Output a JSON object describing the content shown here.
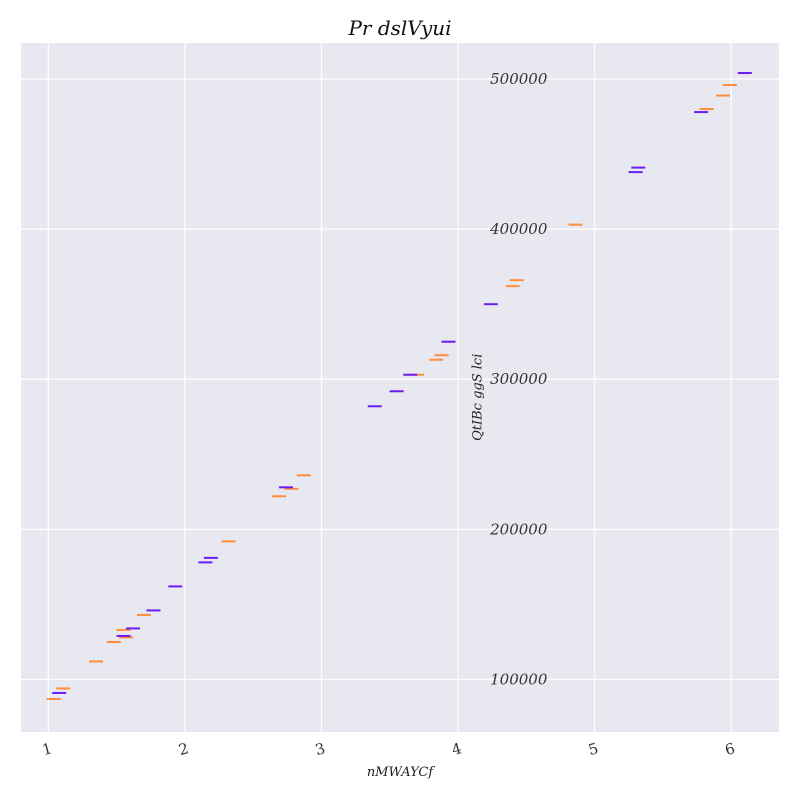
{
  "chart_data": {
    "type": "scatter",
    "marker": "hline",
    "title": "Pr dslVyui",
    "xlabel": "nMWAYCf",
    "ylabel": "QtIBc ggS lci",
    "xlim": [
      0.8,
      6.35
    ],
    "ylim": [
      65000,
      524000
    ],
    "xticks": [
      1,
      2,
      3,
      4,
      5,
      6
    ],
    "xtick_labels": [
      "1",
      "2",
      "3",
      "4",
      "5",
      "6"
    ],
    "yticks": [
      100000,
      200000,
      300000,
      400000,
      500000
    ],
    "ytick_labels": [
      "100000",
      "200000",
      "300000",
      "400000",
      "500000"
    ],
    "grid": true,
    "background": "#e8e8f0",
    "series": [
      {
        "color": "#ff8c3a",
        "x": [
          1.04,
          1.11,
          1.35,
          1.48,
          1.57,
          1.55,
          1.7,
          2.32,
          2.69,
          2.78,
          2.87,
          3.7,
          3.84,
          3.88,
          4.4,
          4.43,
          4.86,
          5.82,
          5.94,
          5.99
        ],
        "y": [
          87000,
          94000,
          112000,
          125000,
          128000,
          133000,
          143000,
          192000,
          222000,
          227000,
          236000,
          303000,
          313000,
          316000,
          362000,
          366000,
          403000,
          480000,
          489000,
          496000
        ]
      },
      {
        "color": "#6a1ef5",
        "x": [
          1.08,
          1.55,
          1.62,
          1.77,
          1.93,
          2.15,
          2.19,
          2.74,
          3.39,
          3.55,
          3.65,
          3.93,
          4.24,
          5.3,
          5.32,
          5.78,
          6.1
        ],
        "y": [
          91000,
          129000,
          134000,
          146000,
          162000,
          178000,
          181000,
          228000,
          282000,
          292000,
          303000,
          325000,
          350000,
          438000,
          441000,
          478000,
          504000
        ]
      }
    ]
  }
}
